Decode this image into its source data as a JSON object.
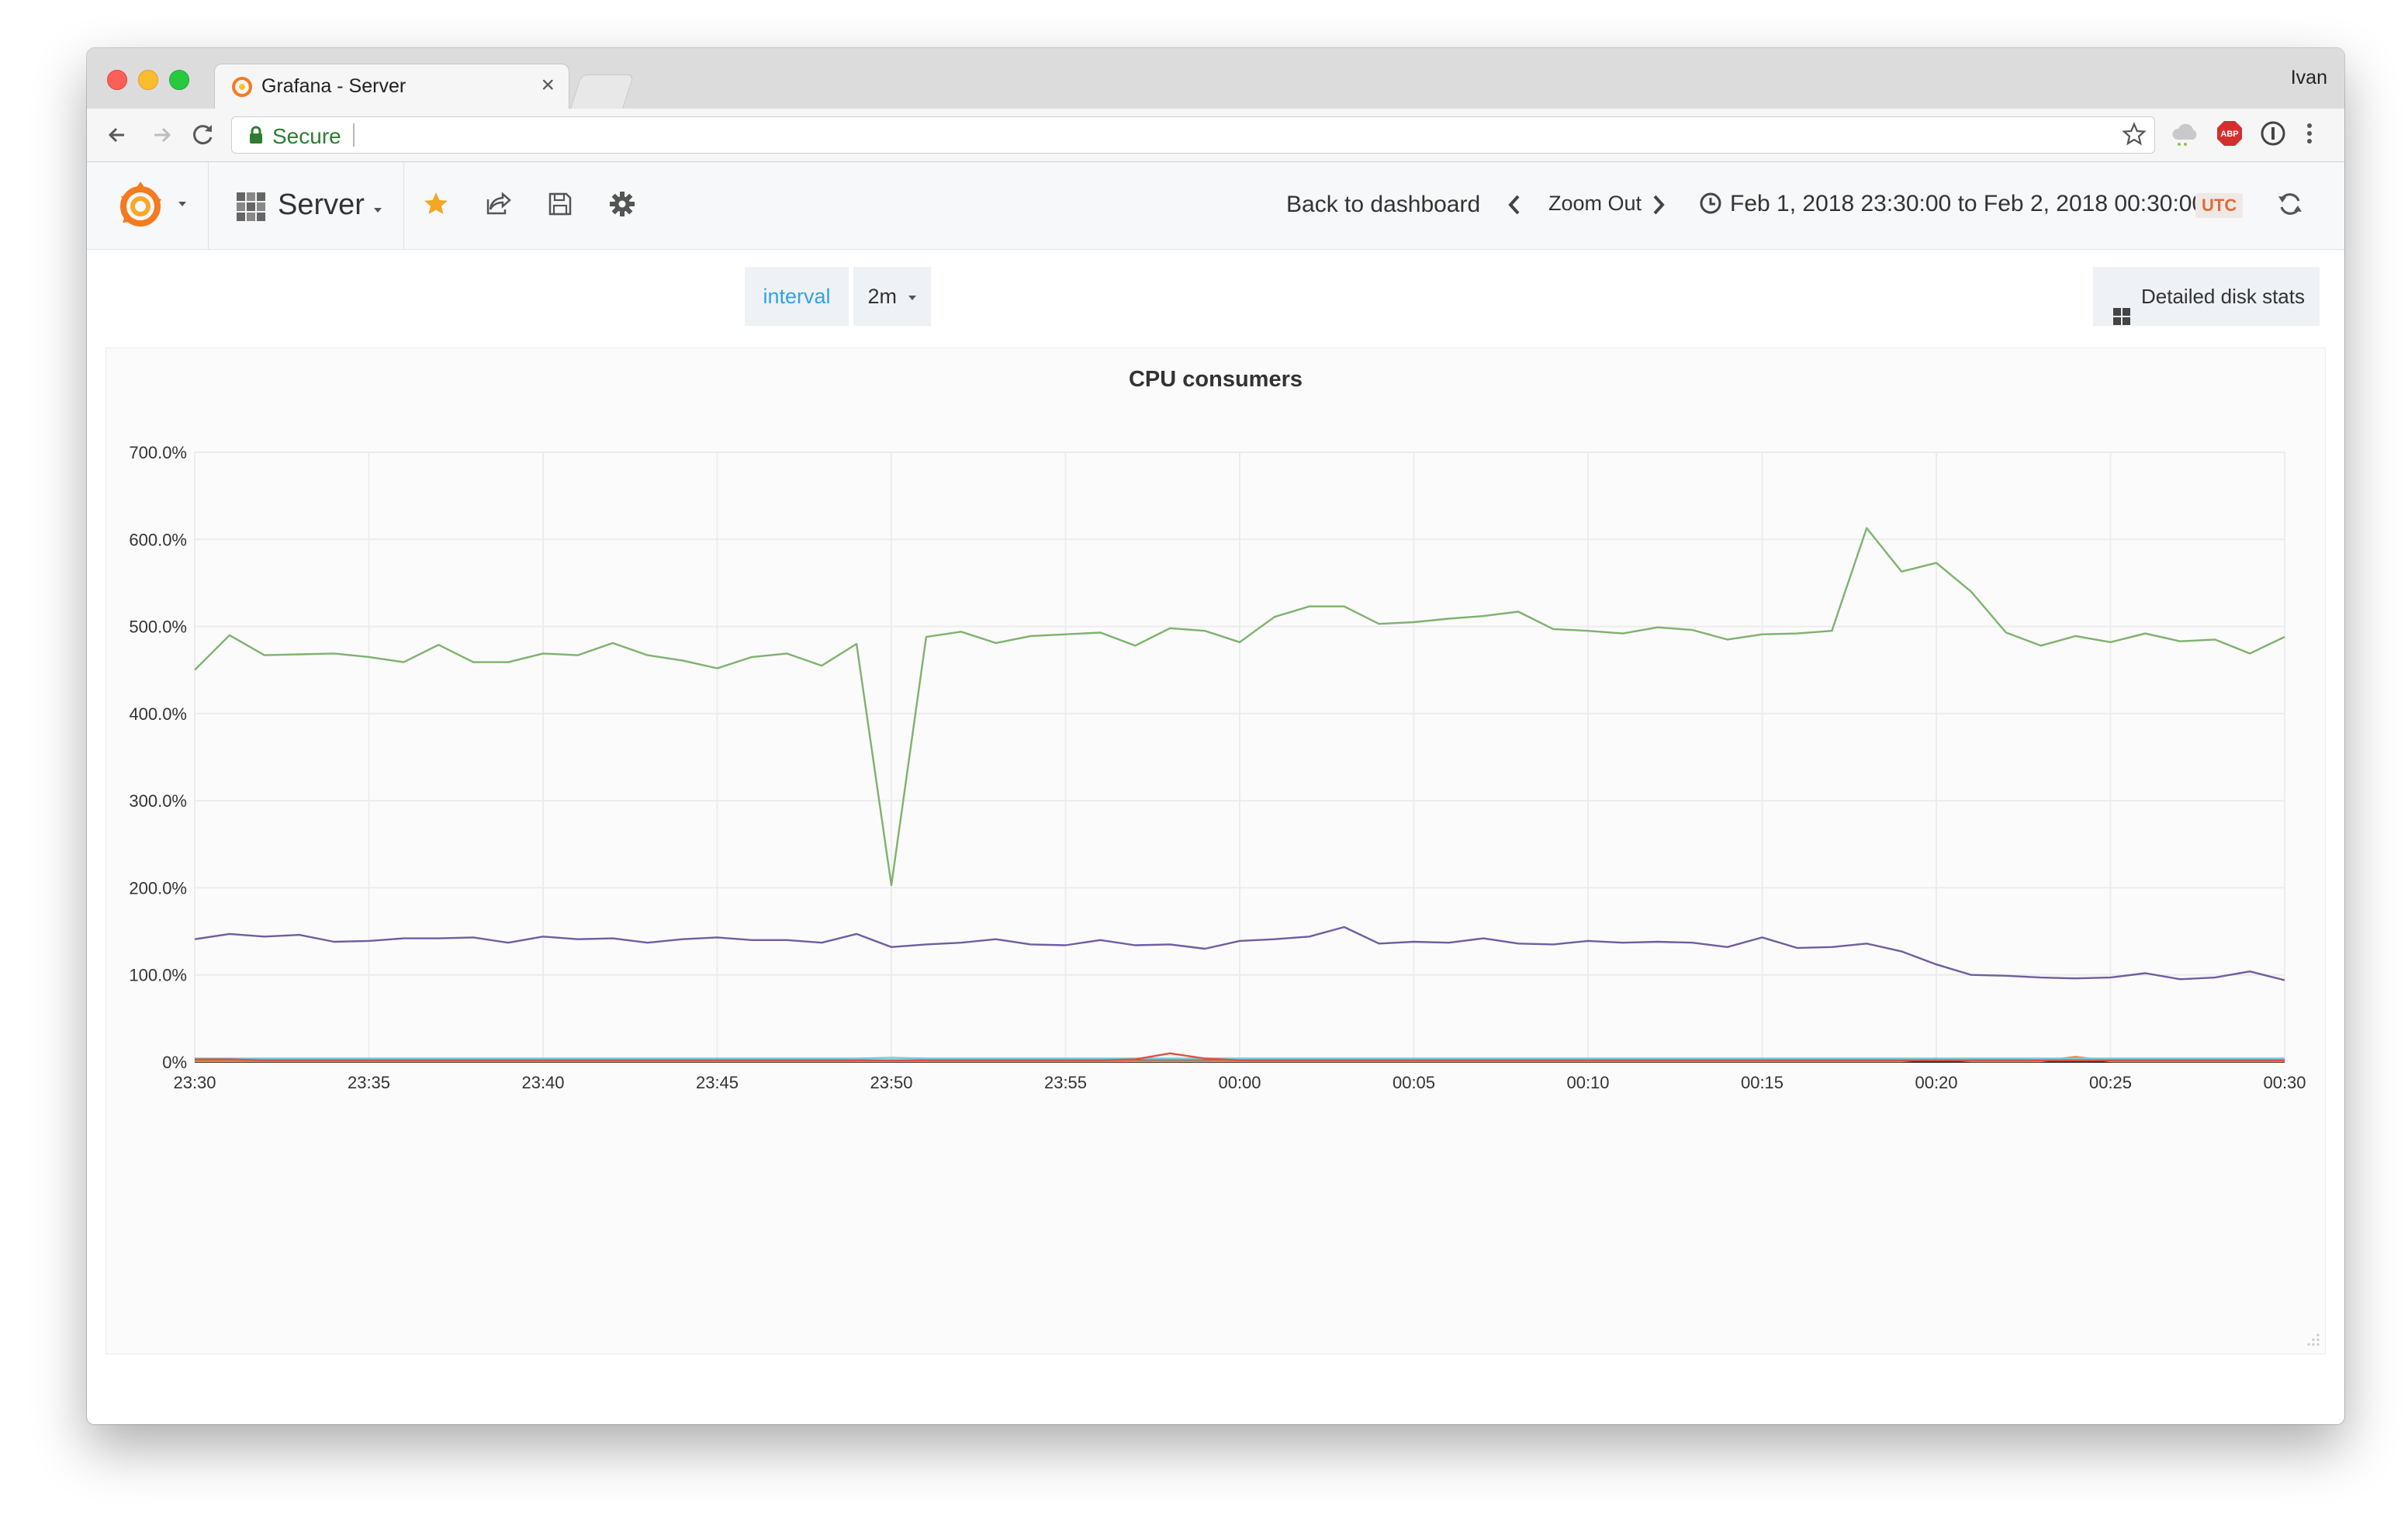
{
  "browser": {
    "tab_title": "Grafana - Server",
    "profile_name": "Ivan",
    "secure_label": "Secure"
  },
  "navbar": {
    "dashboard_title": "Server",
    "back_to_dashboard": "Back to dashboard",
    "zoom_out": "Zoom Out",
    "time_range": "Feb 1, 2018 23:30:00 to Feb 2, 2018 00:30:00",
    "timezone": "UTC"
  },
  "variables": {
    "label": "interval",
    "value": "2m"
  },
  "dashboard_links": {
    "label": "Detailed disk stats"
  },
  "colors": {
    "accent": "#33a2e5",
    "favorite": "#f5a623",
    "utc_badge": "#e26a3a"
  },
  "chart_data": {
    "type": "line",
    "title": "CPU consumers",
    "xlabel": "",
    "ylabel": "",
    "ylim": [
      0,
      700
    ],
    "y_ticks": [
      "0%",
      "100.0%",
      "200.0%",
      "300.0%",
      "400.0%",
      "500.0%",
      "600.0%",
      "700.0%"
    ],
    "x_ticks": [
      "23:30",
      "23:35",
      "23:40",
      "23:45",
      "23:50",
      "23:55",
      "00:00",
      "00:05",
      "00:10",
      "00:15",
      "00:20",
      "00:25",
      "00:30"
    ],
    "x_start": "23:30",
    "x_end": "00:30",
    "grid": true,
    "series": [
      {
        "color": "#7eb26d",
        "values": [
          450,
          490,
          467,
          468,
          469,
          465,
          459,
          479,
          459,
          459,
          469,
          467,
          481,
          467,
          461,
          452,
          465,
          469,
          455,
          480,
          203,
          488,
          494,
          481,
          489,
          491,
          493,
          478,
          498,
          495,
          482,
          511,
          523,
          523,
          503,
          505,
          509,
          512,
          517,
          497,
          495,
          492,
          499,
          496,
          485,
          491,
          492,
          495,
          613,
          563,
          573,
          540,
          493,
          478,
          489,
          482,
          492,
          483,
          485,
          469,
          488
        ]
      },
      {
        "color": "#705da0",
        "values": [
          141,
          147,
          144,
          146,
          138,
          139,
          142,
          142,
          143,
          137,
          144,
          141,
          142,
          137,
          141,
          143,
          140,
          140,
          137,
          147,
          132,
          135,
          137,
          141,
          135,
          134,
          140,
          134,
          135,
          130,
          139,
          141,
          144,
          155,
          136,
          138,
          137,
          142,
          136,
          135,
          139,
          137,
          138,
          137,
          132,
          143,
          131,
          132,
          136,
          127,
          112,
          100,
          99,
          97,
          96,
          97,
          102,
          95,
          97,
          104,
          94
        ]
      },
      {
        "color": "#e24d42",
        "values": [
          3,
          3,
          2,
          2,
          2,
          2,
          2,
          2,
          2,
          2,
          2,
          2,
          2,
          2,
          2,
          2,
          2,
          2,
          2,
          2,
          2,
          2,
          2,
          2,
          2,
          2,
          2,
          3,
          10,
          4,
          2,
          2,
          2,
          2,
          2,
          2,
          2,
          2,
          2,
          2,
          2,
          2,
          2,
          2,
          2,
          2,
          2,
          2,
          2,
          2,
          2,
          2,
          2,
          2,
          2,
          2,
          2,
          2,
          2,
          2,
          2
        ]
      },
      {
        "color": "#6ed0e0",
        "values": [
          4,
          4,
          4,
          4,
          4,
          4,
          4,
          4,
          4,
          4,
          4,
          4,
          4,
          4,
          4,
          4,
          4,
          4,
          4,
          4,
          5,
          4,
          4,
          4,
          4,
          4,
          4,
          4,
          4,
          4,
          4,
          4,
          4,
          4,
          4,
          4,
          4,
          4,
          4,
          4,
          4,
          4,
          4,
          4,
          4,
          4,
          4,
          4,
          4,
          4,
          4,
          4,
          4,
          4,
          4,
          4,
          4,
          4,
          4,
          4,
          4
        ]
      },
      {
        "color": "#ef843c",
        "values": [
          1,
          1,
          1,
          1,
          1,
          1,
          1,
          1,
          1,
          1,
          1,
          1,
          1,
          1,
          1,
          1,
          1,
          1,
          1,
          1,
          1,
          1,
          1,
          1,
          1,
          1,
          1,
          1,
          1,
          1,
          1,
          1,
          1,
          1,
          1,
          1,
          1,
          1,
          1,
          1,
          1,
          1,
          1,
          1,
          1,
          1,
          1,
          1,
          1,
          1,
          4,
          1,
          1,
          1,
          6,
          1,
          1,
          1,
          1,
          1,
          1
        ]
      },
      {
        "color": "#1f78c1",
        "values": [
          2,
          2,
          2,
          2,
          2,
          2,
          2,
          2,
          2,
          2,
          2,
          2,
          2,
          2,
          2,
          2,
          2,
          2,
          2,
          2,
          2,
          2,
          2,
          2,
          2,
          2,
          2,
          2,
          2,
          2,
          2,
          2,
          2,
          2,
          2,
          2,
          2,
          2,
          2,
          2,
          2,
          2,
          2,
          2,
          2,
          2,
          2,
          2,
          2,
          2,
          2,
          2,
          2,
          2,
          2,
          2,
          2,
          2,
          2,
          2,
          2
        ]
      }
    ]
  }
}
